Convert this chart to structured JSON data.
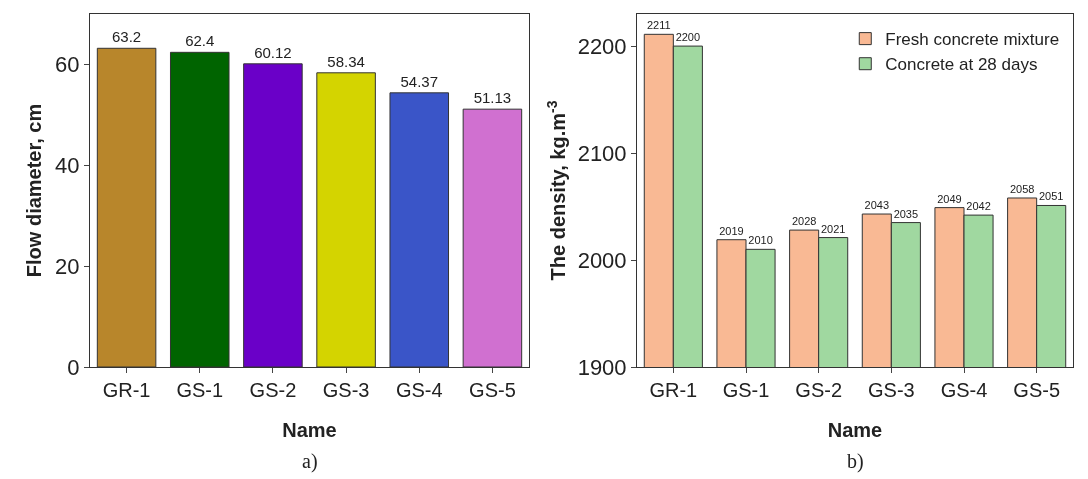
{
  "chart_data": [
    {
      "type": "bar",
      "xlabel": "Name",
      "ylabel": "Flow diameter, cm",
      "categories": [
        "GR-1",
        "GS-1",
        "GS-2",
        "GS-3",
        "GS-4",
        "GS-5"
      ],
      "values": [
        63.2,
        62.4,
        60.12,
        58.34,
        54.37,
        51.13
      ],
      "colors": [
        "#b8862b",
        "#006400",
        "#6a00c8",
        "#d4d400",
        "#3a55c8",
        "#d070d0"
      ],
      "ylim": [
        0,
        70
      ],
      "yticks": [
        0,
        20,
        40,
        60
      ],
      "data_labels": true,
      "grid": false,
      "legend": false,
      "annotations": [
        "a)"
      ]
    },
    {
      "type": "bar",
      "xlabel": "Name",
      "ylabel": "The density, kg.m$^{-3}$",
      "categories": [
        "GR-1",
        "GS-1",
        "GS-2",
        "GS-3",
        "GS-4",
        "GS-5"
      ],
      "series": [
        {
          "name": "Fresh concrete mixture",
          "color": "#f9b994",
          "values": [
            2211,
            2019,
            2028,
            2043,
            2049,
            2058
          ]
        },
        {
          "name": "Concrete at 28 days",
          "color": "#a0d8a0",
          "values": [
            2200,
            2010,
            2021,
            2035,
            2042,
            2051
          ]
        }
      ],
      "ylim": [
        1900,
        2230
      ],
      "yticks": [
        1900,
        2000,
        2100,
        2200
      ],
      "data_labels": true,
      "grid": false,
      "legend": "top right",
      "annotations": [
        "b)"
      ]
    }
  ]
}
